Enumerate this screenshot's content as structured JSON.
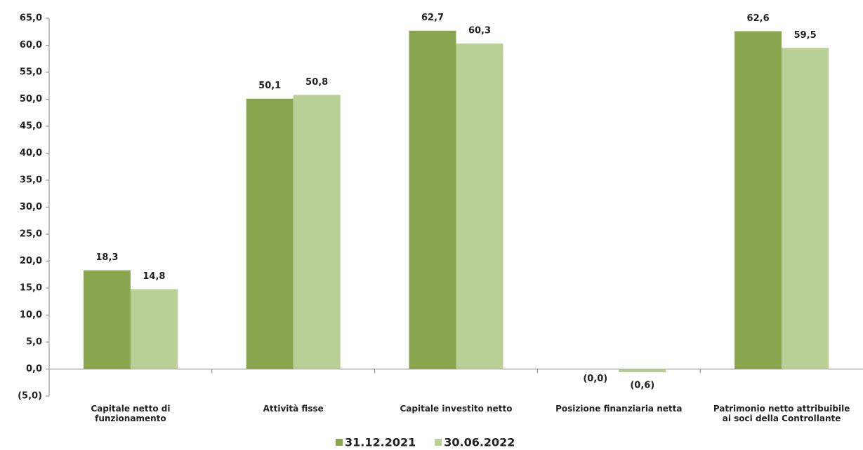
{
  "chart_data": {
    "type": "bar",
    "categories": [
      "Capitale netto di funzionamento",
      "Attività fisse",
      "Capitale investito netto",
      "Posizione finanziaria netta",
      "Patrimonio netto attribuibile ai soci della Controllante"
    ],
    "series": [
      {
        "name": "31.12.2021",
        "color": "#8aa64e",
        "values": [
          18.3,
          50.1,
          62.7,
          -0.0,
          62.6
        ],
        "value_labels": [
          "18,3",
          "50,1",
          "62,7",
          "(0,0)",
          "62,6"
        ]
      },
      {
        "name": "30.06.2022",
        "color": "#b9cf96",
        "values": [
          14.8,
          50.8,
          60.3,
          -0.6,
          59.5
        ],
        "value_labels": [
          "14,8",
          "50,8",
          "60,3",
          "(0,6)",
          "59,5"
        ]
      }
    ],
    "ylim": [
      -5,
      65
    ],
    "yticks": [
      {
        "value": -5,
        "label": "(5,0)"
      },
      {
        "value": 0,
        "label": "0,0"
      },
      {
        "value": 5,
        "label": "5,0"
      },
      {
        "value": 10,
        "label": "10,0"
      },
      {
        "value": 15,
        "label": "15,0"
      },
      {
        "value": 20,
        "label": "20,0"
      },
      {
        "value": 25,
        "label": "25,0"
      },
      {
        "value": 30,
        "label": "30,0"
      },
      {
        "value": 35,
        "label": "35,0"
      },
      {
        "value": 40,
        "label": "40,0"
      },
      {
        "value": 45,
        "label": "45,0"
      },
      {
        "value": 50,
        "label": "50,0"
      },
      {
        "value": 55,
        "label": "55,0"
      },
      {
        "value": 60,
        "label": "60,0"
      },
      {
        "value": 65,
        "label": "65,0"
      }
    ],
    "grid": false,
    "legend": "bottom"
  }
}
